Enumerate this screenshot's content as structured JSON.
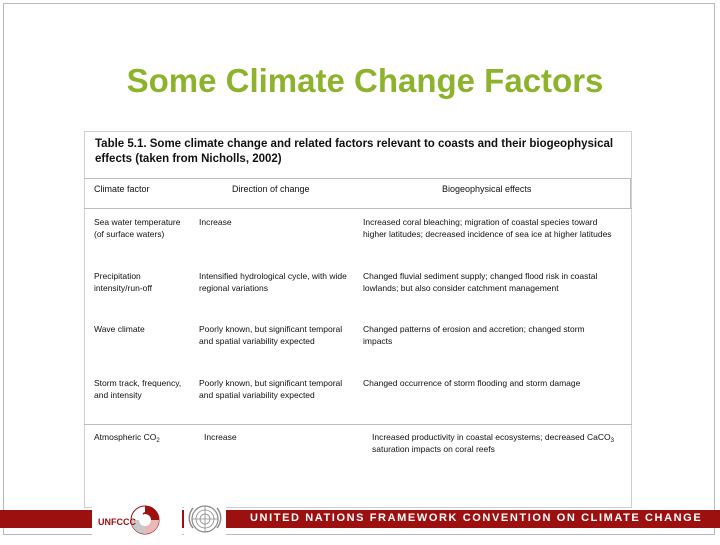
{
  "slide": {
    "title": "Some Climate Change Factors"
  },
  "table": {
    "caption": "Table 5.1. Some climate change and related factors relevant to coasts and their biogeophysical effects (taken from Nicholls, 2002)",
    "headers": [
      "Climate factor",
      "Direction of change",
      "Biogeophysical effects"
    ],
    "rows": [
      {
        "factor": "Sea water temperature (of surface waters)",
        "direction": "Increase",
        "effects": "Increased coral bleaching; migration of coastal species toward higher latitudes; decreased incidence of sea ice at higher latitudes"
      },
      {
        "factor": "Precipitation intensity/run-off",
        "direction": "Intensified hydrological cycle, with wide regional variations",
        "effects": "Changed fluvial sediment supply; changed flood risk in coastal lowlands; but also consider catchment management"
      },
      {
        "factor": "Wave climate",
        "direction": "Poorly known, but significant temporal and spatial variability expected",
        "effects": "Changed patterns of erosion and accretion; changed storm impacts"
      },
      {
        "factor": "Storm track, frequency, and intensity",
        "direction": "Poorly known, but significant temporal and spatial variability expected",
        "effects": "Changed occurrence of storm flooding and storm damage"
      },
      {
        "factor_main": "Atmospheric CO",
        "factor_sub": "2",
        "direction": "Increase",
        "effects_pre": "Increased productivity in coastal ecosystems; decreased CaCO",
        "effects_sub": "3",
        "effects_post": " saturation impacts on coral reefs"
      }
    ]
  },
  "footer": {
    "banner_text": "UNITED NATIONS FRAMEWORK CONVENTION ON CLIMATE CHANGE",
    "logo_text": "UNFCCC",
    "colors": {
      "band": "#9c1010",
      "title": "#8db32d"
    }
  }
}
